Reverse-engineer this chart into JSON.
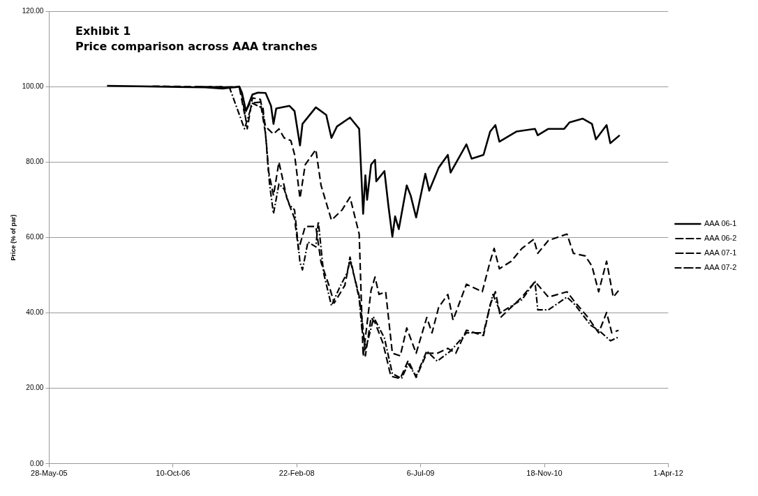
{
  "chart_data": {
    "type": "line",
    "title": "Exhibit 1",
    "subtitle": "Price comparison across AAA tranches",
    "ylabel": "Price (% of par)",
    "xlim": [
      "2005-05-28",
      "2012-04-01"
    ],
    "xticks": [
      {
        "value": "2005-05-28",
        "label": "28-May-05"
      },
      {
        "value": "2006-10-10",
        "label": "10-Oct-06"
      },
      {
        "value": "2008-02-22",
        "label": "22-Feb-08"
      },
      {
        "value": "2009-07-06",
        "label": "6-Jul-09"
      },
      {
        "value": "2010-11-18",
        "label": "18-Nov-10"
      },
      {
        "value": "2012-04-01",
        "label": "1-Apr-12"
      }
    ],
    "ylim": [
      0,
      120
    ],
    "yticks": [
      {
        "value": 0,
        "label": "0.00"
      },
      {
        "value": 20,
        "label": "20.00"
      },
      {
        "value": 40,
        "label": "40.00"
      },
      {
        "value": 60,
        "label": "60.00"
      },
      {
        "value": 80,
        "label": "80.00"
      },
      {
        "value": 100,
        "label": "100.00"
      },
      {
        "value": 120,
        "label": "120.00"
      }
    ],
    "grid": "y",
    "legend": "right",
    "marker": "none",
    "series": [
      {
        "name": "AAA 06-1",
        "color": "#000000",
        "line_style": "solid",
        "x": [
          "2006-01-17",
          "2007-02-17",
          "2007-04-28",
          "2007-07-05",
          "2007-07-16",
          "2007-08-01",
          "2007-08-27",
          "2007-09-18",
          "2007-10-19",
          "2007-11-10",
          "2007-11-20",
          "2007-12-01",
          "2008-01-23",
          "2008-02-13",
          "2008-03-06",
          "2008-03-16",
          "2008-05-09",
          "2008-06-20",
          "2008-07-11",
          "2008-08-02",
          "2008-09-24",
          "2008-10-31",
          "2008-11-16",
          "2008-11-25",
          "2008-12-02",
          "2008-12-18",
          "2009-01-03",
          "2009-01-08",
          "2009-02-10",
          "2009-02-26",
          "2009-03-14",
          "2009-03-25",
          "2009-04-09",
          "2009-05-11",
          "2009-05-27",
          "2009-06-18",
          "2009-07-25",
          "2009-08-10",
          "2009-09-17",
          "2009-10-24",
          "2009-11-04",
          "2010-01-07",
          "2010-01-28",
          "2010-03-17",
          "2010-04-13",
          "2010-05-04",
          "2010-05-20",
          "2010-07-29",
          "2010-10-11",
          "2010-10-22",
          "2010-12-04",
          "2011-02-06",
          "2011-02-27",
          "2011-04-22",
          "2011-05-29",
          "2011-06-14",
          "2011-07-27",
          "2011-08-11",
          "2011-09-18"
        ],
        "values": [
          100.2,
          99.8,
          99.5,
          100.0,
          98.3,
          93.5,
          97.9,
          98.4,
          98.3,
          94.9,
          90.1,
          94.2,
          94.9,
          93.5,
          84.4,
          90.1,
          94.5,
          92.5,
          86.4,
          89.4,
          91.8,
          88.8,
          66.3,
          76.5,
          70.0,
          79.3,
          80.6,
          74.9,
          77.6,
          68.4,
          60.2,
          65.6,
          62.2,
          73.8,
          71.1,
          65.3,
          76.9,
          72.4,
          78.5,
          81.9,
          77.2,
          84.7,
          80.9,
          81.9,
          88.1,
          89.8,
          85.4,
          88.1,
          88.8,
          87.1,
          88.8,
          88.8,
          90.5,
          91.5,
          90.1,
          86.0,
          89.8,
          85.0,
          87.1
        ]
      },
      {
        "name": "AAA 06-2",
        "color": "#000000",
        "line_style": "dashed",
        "x": [
          "2006-07-20",
          "2007-07-05",
          "2007-07-16",
          "2007-08-06",
          "2007-08-27",
          "2007-09-28",
          "2007-10-19",
          "2007-11-20",
          "2007-12-12",
          "2008-01-02",
          "2008-01-29",
          "2008-02-13",
          "2008-03-06",
          "2008-03-27",
          "2008-05-09",
          "2008-05-30",
          "2008-07-11",
          "2008-08-23",
          "2008-09-24",
          "2008-10-31",
          "2008-11-16",
          "2008-12-18",
          "2009-01-03",
          "2009-01-19",
          "2009-02-15",
          "2009-03-14",
          "2009-04-15",
          "2009-05-11",
          "2009-06-18",
          "2009-07-31",
          "2009-08-21",
          "2009-09-17",
          "2009-10-24",
          "2009-11-14",
          "2010-01-07",
          "2010-03-12",
          "2010-04-13",
          "2010-04-29",
          "2010-05-20",
          "2010-07-07",
          "2010-08-19",
          "2010-10-06",
          "2010-10-22",
          "2010-12-04",
          "2011-02-17",
          "2011-03-15",
          "2011-05-02",
          "2011-05-29",
          "2011-06-25",
          "2011-07-27",
          "2011-08-23",
          "2011-09-13"
        ],
        "values": [
          100.1,
          99.9,
          97.6,
          88.8,
          97.0,
          96.6,
          89.4,
          87.4,
          88.8,
          86.4,
          85.7,
          82.0,
          70.4,
          79.3,
          83.3,
          73.8,
          64.6,
          67.3,
          70.7,
          60.9,
          28.5,
          46.0,
          49.5,
          44.9,
          45.6,
          29.3,
          28.6,
          36.0,
          29.3,
          38.8,
          34.7,
          41.5,
          44.9,
          38.1,
          47.6,
          45.6,
          53.7,
          57.1,
          51.7,
          53.7,
          57.1,
          59.5,
          55.8,
          59.2,
          60.9,
          55.8,
          55.1,
          52.4,
          45.6,
          53.7,
          44.2,
          45.9
        ]
      },
      {
        "name": "AAA 07-1",
        "color": "#000000",
        "line_style": "dashed",
        "x": [
          "2007-01-20",
          "2007-07-05",
          "2007-07-26",
          "2007-08-17",
          "2007-09-28",
          "2007-10-19",
          "2007-10-30",
          "2007-11-20",
          "2007-12-12",
          "2008-01-13",
          "2008-02-13",
          "2008-02-29",
          "2008-03-27",
          "2008-05-09",
          "2008-05-30",
          "2008-07-01",
          "2008-07-22",
          "2008-09-03",
          "2008-09-24",
          "2008-10-31",
          "2008-11-16",
          "2008-11-25",
          "2008-12-18",
          "2009-01-03",
          "2009-02-04",
          "2009-03-08",
          "2009-04-15",
          "2009-05-17",
          "2009-06-18",
          "2009-07-31",
          "2009-09-11",
          "2009-10-24",
          "2009-11-25",
          "2010-01-07",
          "2010-03-17",
          "2010-04-13",
          "2010-05-04",
          "2010-05-25",
          "2010-08-19",
          "2010-10-11",
          "2010-12-04",
          "2011-02-17",
          "2011-03-21",
          "2011-05-13",
          "2011-06-25",
          "2011-07-27",
          "2011-08-17",
          "2011-09-13"
        ],
        "values": [
          100.0,
          99.8,
          92.8,
          95.6,
          95.9,
          87.4,
          77.9,
          71.1,
          80.0,
          70.4,
          65.0,
          56.8,
          62.9,
          62.9,
          53.4,
          47.3,
          42.6,
          47.3,
          54.1,
          44.5,
          35.7,
          28.6,
          38.8,
          37.4,
          32.0,
          23.2,
          22.6,
          27.4,
          22.9,
          29.3,
          29.3,
          30.6,
          29.3,
          35.4,
          34.0,
          42.2,
          45.6,
          38.8,
          44.2,
          48.3,
          44.2,
          45.6,
          42.9,
          38.8,
          34.7,
          40.1,
          34.7,
          35.4
        ]
      },
      {
        "name": "AAA 07-2",
        "color": "#000000",
        "line_style": "dashdot",
        "x": [
          "2007-05-25",
          "2007-07-26",
          "2007-08-27",
          "2007-10-09",
          "2007-10-25",
          "2007-11-04",
          "2007-11-20",
          "2007-12-12",
          "2008-01-02",
          "2008-01-23",
          "2008-02-13",
          "2008-03-06",
          "2008-03-16",
          "2008-04-07",
          "2008-05-09",
          "2008-05-19",
          "2008-06-09",
          "2008-07-11",
          "2008-08-12",
          "2008-09-13",
          "2008-09-24",
          "2008-10-31",
          "2008-11-11",
          "2008-11-27",
          "2008-12-29",
          "2009-02-10",
          "2009-03-14",
          "2009-04-20",
          "2009-05-17",
          "2009-06-18",
          "2009-07-31",
          "2009-09-11",
          "2009-11-04",
          "2010-01-07",
          "2010-03-17",
          "2010-04-24",
          "2010-05-25",
          "2010-08-19",
          "2010-10-11",
          "2010-10-22",
          "2010-12-04",
          "2011-02-17",
          "2011-03-21",
          "2011-05-24",
          "2011-06-25",
          "2011-08-12",
          "2011-09-13"
        ],
        "values": [
          100.0,
          88.8,
          95.6,
          94.2,
          83.0,
          74.2,
          66.3,
          74.2,
          72.8,
          68.7,
          67.3,
          53.4,
          51.4,
          58.8,
          57.5,
          64.3,
          50.7,
          41.9,
          46.6,
          50.7,
          54.8,
          43.8,
          35.7,
          30.6,
          38.8,
          33.3,
          23.9,
          22.6,
          26.5,
          23.2,
          29.9,
          27.2,
          29.9,
          34.7,
          34.7,
          44.9,
          40.1,
          43.5,
          48.3,
          40.8,
          40.8,
          44.2,
          42.2,
          36.7,
          35.4,
          32.6,
          33.6
        ]
      }
    ]
  }
}
